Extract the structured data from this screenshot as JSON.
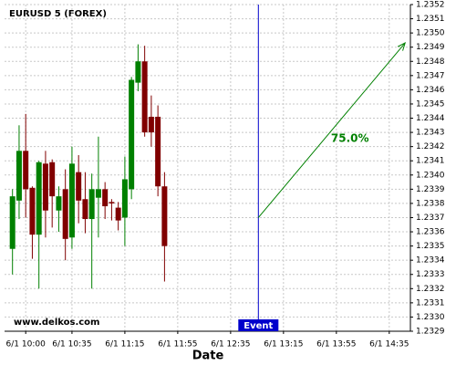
{
  "chart_data": {
    "type": "candlestick",
    "title": "EURUSD 5 (FOREX)",
    "x_label": "Date",
    "watermark": "www.delkos.com",
    "x": [
      "6/1 09:50",
      "6/1 09:55",
      "6/1 10:00",
      "6/1 10:05",
      "6/1 10:10",
      "6/1 10:15",
      "6/1 10:20",
      "6/1 10:25",
      "6/1 10:30",
      "6/1 10:35",
      "6/1 10:40",
      "6/1 10:45",
      "6/1 10:50",
      "6/1 10:55",
      "6/1 11:00",
      "6/1 11:05",
      "6/1 11:10",
      "6/1 11:15",
      "6/1 11:20",
      "6/1 11:25",
      "6/1 11:30",
      "6/1 11:35",
      "6/1 11:40",
      "6/1 11:45"
    ],
    "open": [
      1.23348,
      1.23382,
      1.23417,
      1.23391,
      1.23358,
      1.23408,
      1.23409,
      1.23375,
      1.2339,
      1.23356,
      1.23402,
      1.23383,
      1.23369,
      1.23384,
      1.2339,
      1.23381,
      1.23377,
      1.2337,
      1.2339,
      1.23465,
      1.2348,
      1.23441,
      1.23441,
      1.23392
    ],
    "high": [
      1.2339,
      1.23435,
      1.23443,
      1.23392,
      1.2341,
      1.23417,
      1.23411,
      1.23392,
      1.23404,
      1.2342,
      1.23414,
      1.23402,
      1.23401,
      1.23427,
      1.23395,
      1.23383,
      1.23381,
      1.23413,
      1.23469,
      1.23492,
      1.23491,
      1.23456,
      1.23449,
      1.23402
    ],
    "low": [
      1.2333,
      1.23369,
      1.2337,
      1.23341,
      1.2332,
      1.23356,
      1.23363,
      1.2336,
      1.2334,
      1.23348,
      1.23366,
      1.23359,
      1.2332,
      1.23356,
      1.23369,
      1.23368,
      1.23361,
      1.2335,
      1.23383,
      1.23459,
      1.23427,
      1.2342,
      1.23385,
      1.23325
    ],
    "close": [
      1.23385,
      1.23417,
      1.2339,
      1.23358,
      1.23409,
      1.23375,
      1.23385,
      1.23385,
      1.23355,
      1.23408,
      1.23382,
      1.23369,
      1.2339,
      1.2339,
      1.23378,
      1.2338,
      1.23368,
      1.23397,
      1.23467,
      1.2348,
      1.2343,
      1.2343,
      1.23392,
      1.2335
    ],
    "up_color": "#008000",
    "down_color": "#800000",
    "xlim": [
      "6/1 09:44",
      "6/1 14:51"
    ],
    "xticks": [
      "6/1 10:00",
      "6/1 10:35",
      "6/1 11:15",
      "6/1 11:55",
      "6/1 12:35",
      "6/1 13:15",
      "6/1 13:55",
      "6/1 14:35"
    ],
    "ylim": [
      1.2329,
      1.2352
    ],
    "yticks": [
      1.2329,
      {
        "value": 1.233,
        "label": "1.2330"
      },
      1.2331,
      1.2332,
      1.2333,
      1.2334,
      1.2335,
      1.2336,
      1.2337,
      1.2338,
      1.2339,
      {
        "value": 1.234,
        "label": "1.2340"
      },
      1.2341,
      1.2342,
      1.2343,
      1.2344,
      1.2345,
      1.2346,
      1.2347,
      1.2348,
      1.2349,
      {
        "value": 1.235,
        "label": "1.2350"
      },
      1.2351,
      1.2352
    ],
    "grid": true,
    "event": {
      "x": "6/1 12:56",
      "label": "Event",
      "color": "#0000cc"
    },
    "projection": {
      "x": [
        "6/1 12:56",
        "6/1 14:47"
      ],
      "y": [
        1.2337,
        1.23493
      ],
      "label": "75.0%",
      "color": "#008000"
    }
  }
}
